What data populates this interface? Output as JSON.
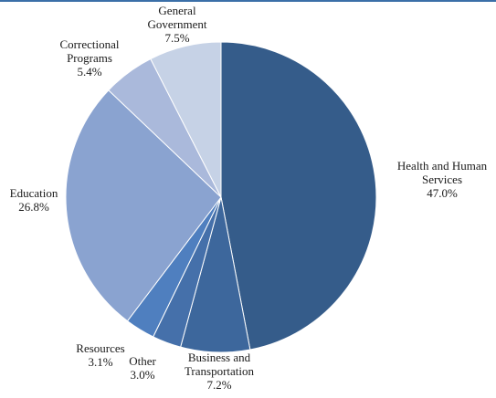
{
  "chart_data": {
    "type": "pie",
    "title": "",
    "start_angle_deg": 0,
    "direction": "clockwise",
    "slices": [
      {
        "label": "Health and Human Services",
        "label_lines": [
          "Health and Human",
          "Services"
        ],
        "value_text": "47.0%",
        "value": 47.0,
        "color": "#355c8a"
      },
      {
        "label": "Business and Transportation",
        "label_lines": [
          "Business and",
          "Transportation"
        ],
        "value_text": "7.2%",
        "value": 7.2,
        "color": "#3d679c"
      },
      {
        "label": "Other",
        "label_lines": [
          "Other"
        ],
        "value_text": "3.0%",
        "value": 3.0,
        "color": "#4570aa"
      },
      {
        "label": "Resources",
        "label_lines": [
          "Resources"
        ],
        "value_text": "3.1%",
        "value": 3.1,
        "color": "#4f7fbf"
      },
      {
        "label": "Education",
        "label_lines": [
          "Education"
        ],
        "value_text": "26.8%",
        "value": 26.8,
        "color": "#8aa3d0"
      },
      {
        "label": "Correctional Programs",
        "label_lines": [
          "Correctional",
          "Programs"
        ],
        "value_text": "5.4%",
        "value": 5.4,
        "color": "#aab9db"
      },
      {
        "label": "General Government",
        "label_lines": [
          "General",
          "Government"
        ],
        "value_text": "7.5%",
        "value": 7.5,
        "color": "#c6d2e6"
      }
    ]
  }
}
